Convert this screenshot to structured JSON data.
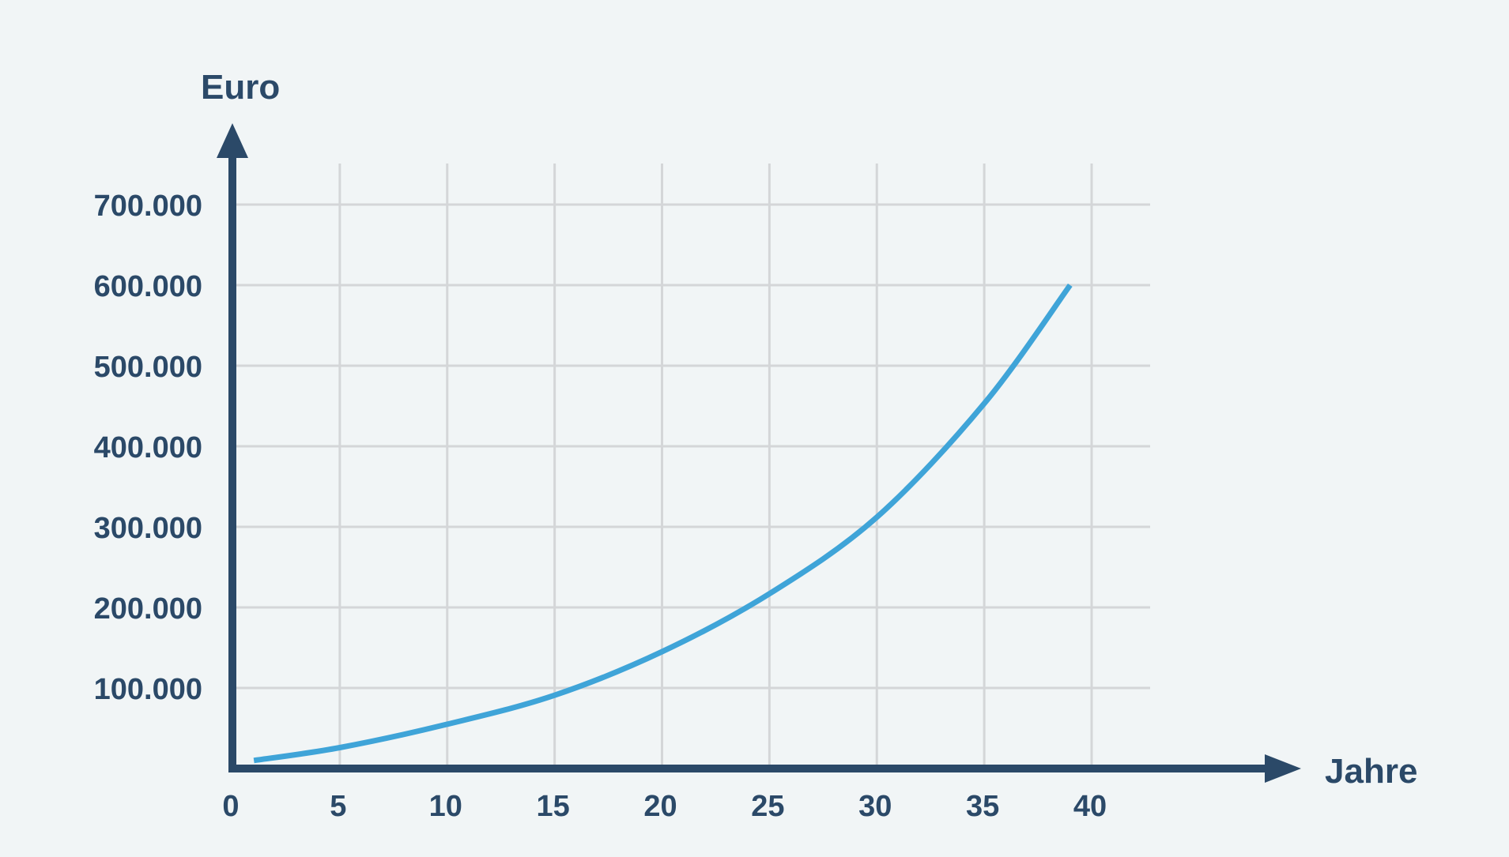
{
  "chart_data": {
    "type": "line",
    "xlabel": "Jahre",
    "ylabel": "Euro",
    "xlim": [
      0,
      40
    ],
    "ylim": [
      0,
      700000
    ],
    "x_ticks": [
      "0",
      "5",
      "10",
      "15",
      "20",
      "25",
      "30",
      "35",
      "40"
    ],
    "y_ticks": [
      "100.000",
      "200.000",
      "300.000",
      "400.000",
      "500.000",
      "600.000",
      "700.000"
    ],
    "grid": true,
    "series": [
      {
        "x": [
          1,
          5,
          10,
          15,
          20,
          25,
          30,
          35,
          39
        ],
        "values": [
          10000,
          26000,
          55000,
          91000,
          145000,
          217000,
          312000,
          453000,
          600000
        ]
      }
    ],
    "colors": {
      "line": "#3fa4d8",
      "axis": "#2b4968",
      "grid": "#d4d6d8",
      "text": "#2b4968",
      "background": "#f1f5f6"
    }
  }
}
